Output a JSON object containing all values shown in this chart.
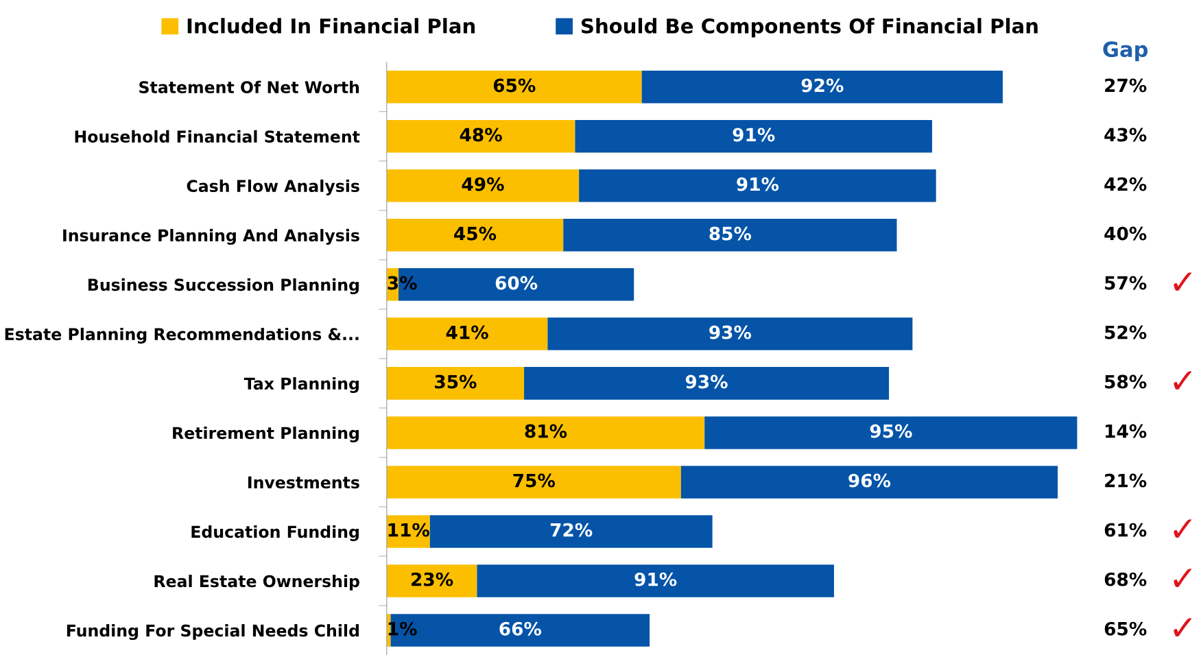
{
  "chart_data": {
    "type": "bar",
    "orientation": "horizontal",
    "stacked": true,
    "legend": "top",
    "grid": false,
    "categories": [
      "Statement Of Net Worth",
      "Household Financial Statement",
      "Cash Flow Analysis",
      "Insurance Planning And Analysis",
      "Business Succession Planning",
      "Estate Planning Recommendations &...",
      "Tax Planning",
      "Retirement Planning",
      "Investments",
      "Education Funding",
      "Real Estate Ownership",
      "Funding For Special Needs Child"
    ],
    "series": [
      {
        "name": "Included In Financial Plan",
        "color": "#fbbf00",
        "values": [
          65,
          48,
          49,
          45,
          3,
          41,
          35,
          81,
          75,
          11,
          23,
          1
        ],
        "value_labels": [
          "65%",
          "48%",
          "49%",
          "45%",
          "3%",
          "41%",
          "35%",
          "81%",
          "75%",
          "11%",
          "23%",
          "1%"
        ]
      },
      {
        "name": "Should Be Components Of Financial Plan",
        "color": "#0554a8",
        "values": [
          92,
          91,
          91,
          85,
          60,
          93,
          93,
          95,
          96,
          72,
          91,
          66
        ],
        "value_labels": [
          "92%",
          "91%",
          "91%",
          "85%",
          "60%",
          "93%",
          "93%",
          "95%",
          "96%",
          "72%",
          "91%",
          "66%"
        ]
      }
    ],
    "annotations": [
      "Gap",
      "27%",
      "43%",
      "42%",
      "40%",
      "57% ✓",
      "52%",
      "58% ✓",
      "14%",
      "21%",
      "61% ✓",
      "68% ✓",
      "65% ✓"
    ]
  }
}
